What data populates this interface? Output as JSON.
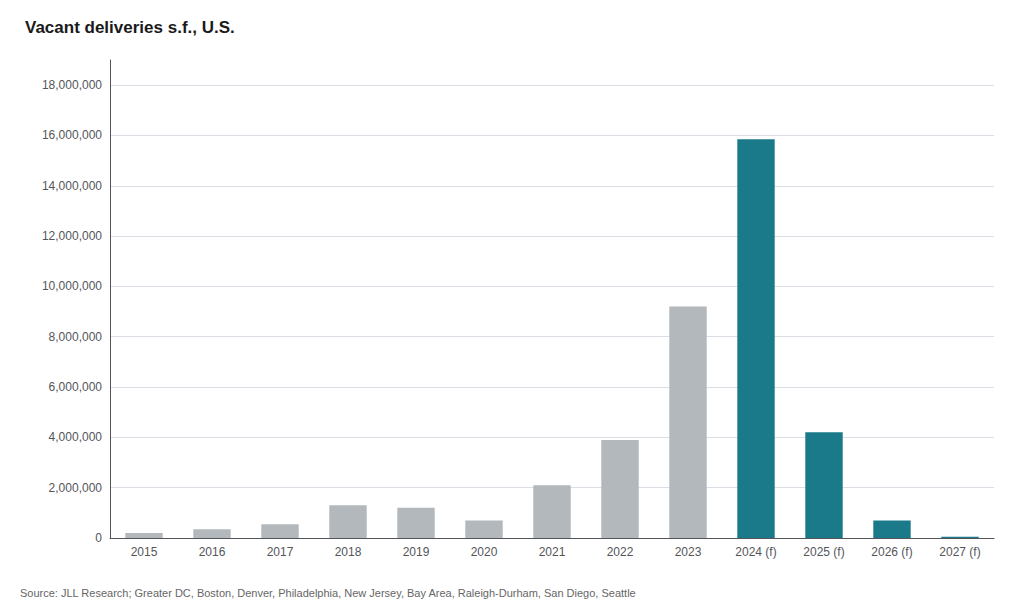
{
  "chart_data": {
    "type": "bar",
    "title": "Vacant deliveries s.f., U.S.",
    "categories": [
      "2015",
      "2016",
      "2017",
      "2018",
      "2019",
      "2020",
      "2021",
      "2022",
      "2023",
      "2024 (f)",
      "2025 (f)",
      "2026 (f)",
      "2027 (f)"
    ],
    "values": [
      200000,
      350000,
      550000,
      1300000,
      1200000,
      700000,
      2100000,
      3900000,
      9200000,
      15850000,
      4200000,
      700000,
      50000
    ],
    "colors": [
      "#b2b8bc",
      "#b2b8bc",
      "#b2b8bc",
      "#b2b8bc",
      "#b2b8bc",
      "#b2b8bc",
      "#b2b8bc",
      "#b2b8bc",
      "#b2b8bc",
      "#1a7a8a",
      "#1a7a8a",
      "#1a7a8a",
      "#1a7a8a"
    ],
    "ylim": [
      0,
      19000000
    ],
    "yticks": [
      0,
      {
        "value": 2000000,
        "label": "2,000,000"
      },
      {
        "value": 4000000,
        "label": "4,000,000"
      },
      {
        "value": 6000000,
        "label": "6,000,000"
      },
      {
        "value": 8000000,
        "label": "8,000,000"
      },
      {
        "value": 10000000,
        "label": "10,000,000"
      },
      {
        "value": 12000000,
        "label": "12,000,000"
      },
      {
        "value": 14000000,
        "label": "14,000,000"
      },
      {
        "value": 16000000,
        "label": "16,000,000"
      },
      {
        "value": 18000000,
        "label": "18,000,000"
      }
    ],
    "grid": true,
    "annotations": [
      "Source: JLL Research; Greater DC, Boston, Denver, Philadelphia, New Jersey, Bay Area, Raleigh-Durham, San Diego, Seattle"
    ]
  }
}
